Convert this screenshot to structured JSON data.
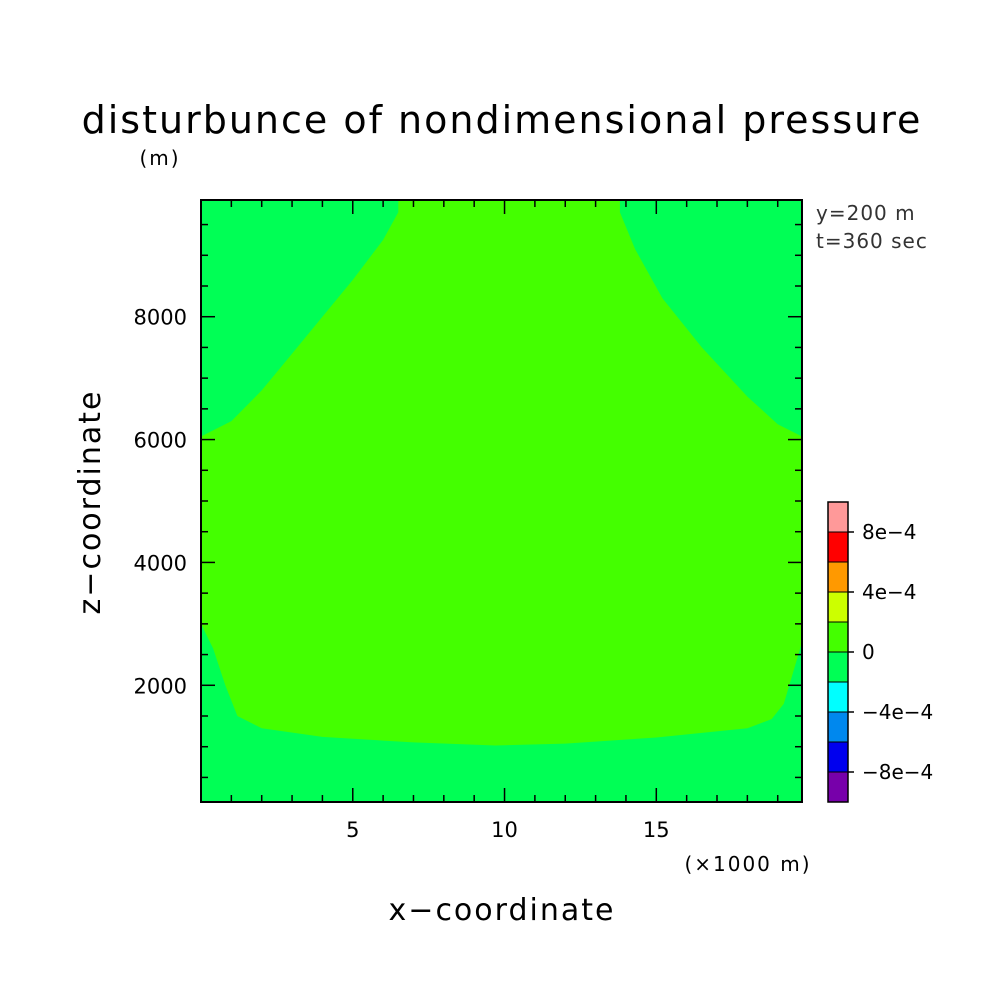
{
  "chart_data": {
    "type": "heatmap",
    "title": "disturbunce of nondimensional pressure",
    "y_unit_label": "(m)",
    "x_unit_label": "(×1000 m)",
    "xlabel": "x−coordinate",
    "ylabel": "z−coordinate",
    "annotations": [
      "y=200 m",
      "t=360 sec"
    ],
    "xlim": [
      0,
      19.8
    ],
    "ylim": [
      100,
      9900
    ],
    "x_ticks": [
      5,
      10,
      15
    ],
    "x_tick_labels": [
      "5",
      "10",
      "15"
    ],
    "y_ticks": [
      2000,
      4000,
      6000,
      8000
    ],
    "y_tick_labels": [
      "2000",
      "4000",
      "6000",
      "8000"
    ],
    "grid": false,
    "background_level_color": "#00ff55",
    "regions": [
      {
        "name": "upper-left-region",
        "level": "-2e-4 to 0",
        "color": "#00ff55",
        "boundary": [
          [
            0,
            9900
          ],
          [
            0,
            6050
          ],
          [
            1,
            6300
          ],
          [
            2,
            6800
          ],
          [
            3,
            7400
          ],
          [
            4,
            8000
          ],
          [
            5,
            8600
          ],
          [
            6,
            9250
          ],
          [
            6.5,
            9700
          ],
          [
            6.5,
            9900
          ]
        ]
      },
      {
        "name": "upper-right-region",
        "level": "-2e-4 to 0",
        "color": "#00ff55",
        "boundary": [
          [
            13.8,
            9900
          ],
          [
            13.8,
            9700
          ],
          [
            14.3,
            9100
          ],
          [
            15.2,
            8300
          ],
          [
            16.5,
            7500
          ],
          [
            18,
            6700
          ],
          [
            19,
            6250
          ],
          [
            19.8,
            6050
          ],
          [
            19.8,
            9900
          ]
        ]
      },
      {
        "name": "center-region",
        "level": "0 to 2e-4",
        "color": "#44ff00",
        "boundary": [
          [
            0,
            6050
          ],
          [
            1,
            6300
          ],
          [
            2,
            6800
          ],
          [
            3,
            7400
          ],
          [
            4,
            8000
          ],
          [
            5,
            8600
          ],
          [
            6,
            9250
          ],
          [
            6.5,
            9700
          ],
          [
            6.5,
            9900
          ],
          [
            13.8,
            9900
          ],
          [
            13.8,
            9700
          ],
          [
            14.3,
            9100
          ],
          [
            15.2,
            8300
          ],
          [
            16.5,
            7500
          ],
          [
            18,
            6700
          ],
          [
            19,
            6250
          ],
          [
            19.8,
            6050
          ],
          [
            19.8,
            2700
          ],
          [
            19.5,
            2200
          ],
          [
            19.2,
            1700
          ],
          [
            18.8,
            1450
          ],
          [
            18,
            1300
          ],
          [
            15,
            1150
          ],
          [
            12,
            1050
          ],
          [
            9.7,
            1020
          ],
          [
            7,
            1070
          ],
          [
            4,
            1160
          ],
          [
            2,
            1300
          ],
          [
            1.2,
            1500
          ],
          [
            0.8,
            2000
          ],
          [
            0.4,
            2600
          ],
          [
            0,
            3000
          ]
        ]
      }
    ],
    "colorbar": {
      "levels": [
        {
          "range": "-1e-3 to -8e-4",
          "color": "#7700aa"
        },
        {
          "range": "-8e-4 to -6e-4",
          "color": "#0000ee"
        },
        {
          "range": "-6e-4 to -4e-4",
          "color": "#0088ee"
        },
        {
          "range": "-4e-4 to -2e-4",
          "color": "#00ffff"
        },
        {
          "range": "-2e-4 to 0",
          "color": "#00ff55"
        },
        {
          "range": "0 to 2e-4",
          "color": "#44ff00"
        },
        {
          "range": "2e-4 to 4e-4",
          "color": "#ccff00"
        },
        {
          "range": "4e-4 to 6e-4",
          "color": "#ff9900"
        },
        {
          "range": "6e-4 to 8e-4",
          "color": "#ff0000"
        },
        {
          "range": "8e-4 to 1e-3",
          "color": "#ff9999"
        }
      ],
      "labels": [
        "−8e−4",
        "−4e−4",
        "0",
        "4e−4",
        "8e−4"
      ],
      "label_values": [
        -0.0008,
        -0.0004,
        0,
        0.0004,
        0.0008
      ],
      "range": [
        -0.001,
        0.001
      ]
    }
  }
}
